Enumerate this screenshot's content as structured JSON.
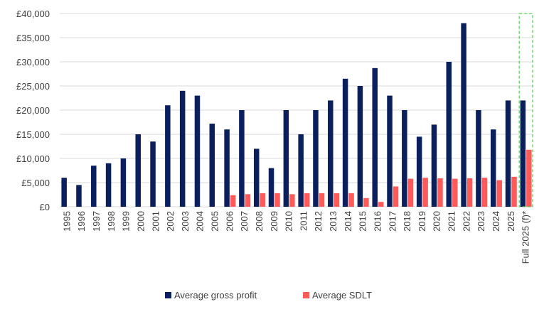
{
  "chart_data": {
    "type": "bar",
    "title": "",
    "xlabel": "",
    "ylabel": "",
    "ylim": [
      0,
      40000
    ],
    "yticks": [
      0,
      5000,
      10000,
      15000,
      20000,
      25000,
      30000,
      35000,
      40000
    ],
    "ytick_labels": [
      "£0",
      "£5,000",
      "£10,000",
      "£15,000",
      "£20,000",
      "£25,000",
      "£30,000",
      "£35,000",
      "£40,000"
    ],
    "grid": true,
    "legend_position": "bottom",
    "categories": [
      "1995",
      "1996",
      "1997",
      "1998",
      "1999",
      "2000",
      "2001",
      "2002",
      "2003",
      "2004",
      "2005",
      "2006",
      "2007",
      "2008",
      "2009",
      "2010",
      "2011",
      "2012",
      "2013",
      "2014",
      "2015",
      "2016",
      "2017",
      "2018",
      "2019",
      "2020",
      "2021",
      "2022",
      "2023",
      "2024",
      "2025",
      "Full 2025 (f)*"
    ],
    "highlighted_category": "Full 2025 (f)*",
    "series": [
      {
        "name": "Average gross profit",
        "color": "#0a1f5c",
        "values": [
          6000,
          4500,
          8500,
          9000,
          10000,
          15000,
          13500,
          21000,
          24000,
          23000,
          17200,
          16000,
          20000,
          12000,
          8000,
          20000,
          15000,
          20000,
          22000,
          26500,
          25000,
          28700,
          23000,
          20000,
          14500,
          17000,
          30000,
          38000,
          20000,
          16000,
          22000,
          22000
        ]
      },
      {
        "name": "Average SDLT",
        "color": "#ff5a5a",
        "values": [
          0,
          0,
          0,
          0,
          0,
          0,
          0,
          0,
          0,
          0,
          0,
          2400,
          2600,
          2800,
          2800,
          2600,
          2800,
          2800,
          2800,
          2800,
          1800,
          1000,
          4200,
          5800,
          6000,
          5900,
          5800,
          5900,
          6000,
          5500,
          6200,
          11800
        ]
      }
    ]
  }
}
